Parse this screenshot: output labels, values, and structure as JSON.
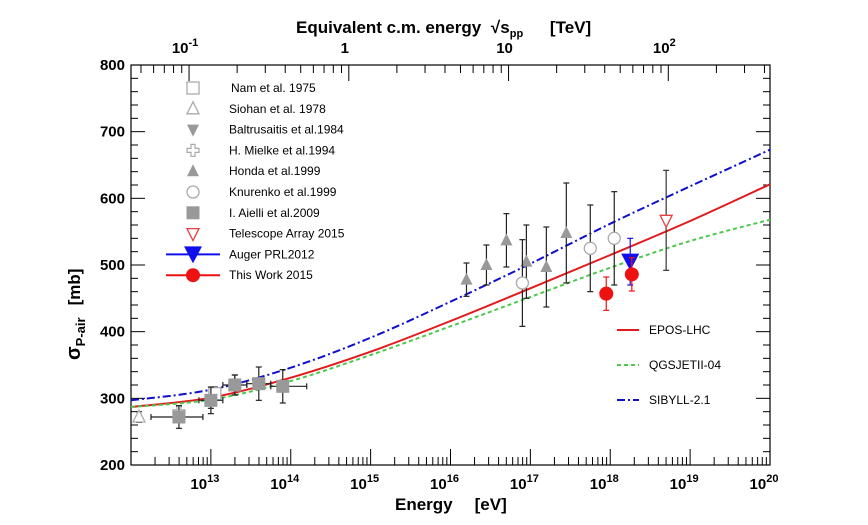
{
  "chart_data": {
    "type": "scatter",
    "ylabel": "σ",
    "ylabel_sub": "P-air",
    "ylabel_unit": "[mb]",
    "xlabel": "Energy",
    "xlabel_unit": "[eV]",
    "top_axis_title": "Equivalent c.m. energy",
    "top_axis_sqrt": "√",
    "top_axis_var": "s",
    "top_axis_sub": "pp",
    "top_axis_unit": "[TeV]",
    "xlim_log10": [
      12.0,
      20.0
    ],
    "ylim": [
      200,
      800
    ],
    "y_ticks": [
      200,
      300,
      400,
      500,
      600,
      700,
      800
    ],
    "x_ticks": [
      {
        "exp": 13,
        "base": "10",
        "sup": "13"
      },
      {
        "exp": 14,
        "base": "10",
        "sup": "14"
      },
      {
        "exp": 15,
        "base": "10",
        "sup": "15"
      },
      {
        "exp": 16,
        "base": "10",
        "sup": "16"
      },
      {
        "exp": 17,
        "base": "10",
        "sup": "17"
      },
      {
        "exp": 18,
        "base": "10",
        "sup": "18"
      },
      {
        "exp": 19,
        "base": "10",
        "sup": "19"
      },
      {
        "exp": 20,
        "base": "10",
        "sup": "20"
      }
    ],
    "top_ticks": [
      {
        "tev": 0.1,
        "base": "10",
        "sup": "-1"
      },
      {
        "tev": 1,
        "base": "1",
        "sup": ""
      },
      {
        "tev": 10,
        "base": "10",
        "sup": ""
      },
      {
        "tev": 100,
        "base": "10",
        "sup": "2"
      }
    ],
    "legend": [
      {
        "id": "nam",
        "label": "Nam et al. 1975",
        "marker": "open-square",
        "color": "#aaaaaa"
      },
      {
        "id": "siohan",
        "label": "Siohan et al. 1978",
        "marker": "open-triangle-up",
        "color": "#aaaaaa"
      },
      {
        "id": "baltrusaitis",
        "label": "Baltrusaitis et al.1984",
        "marker": "filled-triangle-down",
        "color": "#999999"
      },
      {
        "id": "mielke",
        "label": "H. Mielke et al.1994",
        "marker": "open-cross",
        "color": "#aaaaaa"
      },
      {
        "id": "honda",
        "label": "Honda et al.1999",
        "marker": "filled-triangle-up",
        "color": "#999999"
      },
      {
        "id": "knurenko",
        "label": "Knurenko et al.1999",
        "marker": "open-circle",
        "color": "#aaaaaa"
      },
      {
        "id": "aielli",
        "label": "I. Aielli et al.2009",
        "marker": "filled-square",
        "color": "#999999"
      },
      {
        "id": "ta",
        "label": "Telescope Array 2015",
        "marker": "open-triangle-down",
        "color": "#e04040"
      },
      {
        "id": "auger",
        "label": "Auger PRL2012",
        "marker": "filled-triangle-down-big",
        "color": "#1010ee"
      },
      {
        "id": "this",
        "label": "This Work 2015",
        "marker": "filled-circle-big",
        "color": "#ee1111"
      }
    ],
    "models": [
      {
        "name": "EPOS-LHC",
        "color": "#e31a1c",
        "dash": "",
        "logE": [
          12,
          13,
          14,
          15,
          16,
          17,
          18,
          19,
          20
        ],
        "values": [
          287,
          301,
          331,
          370,
          416,
          465,
          515,
          566,
          621
        ]
      },
      {
        "name": "QGSJETII-04",
        "color": "#4dc84d",
        "dash": "4,3",
        "logE": [
          12,
          13,
          14,
          15,
          16,
          17,
          18,
          19,
          20
        ],
        "values": [
          287,
          298,
          326,
          365,
          408,
          452,
          496,
          536,
          568
        ]
      },
      {
        "name": "SIBYLL-2.1",
        "color": "#1010cc",
        "dash": "8,3,2,3",
        "logE": [
          12,
          13,
          14,
          15,
          16,
          17,
          18,
          19,
          20
        ],
        "values": [
          297,
          313,
          346,
          391,
          445,
          502,
          562,
          618,
          673
        ]
      }
    ],
    "series": [
      {
        "id": "siohan",
        "points": [
          {
            "logE": 12.1,
            "y": 272,
            "yerr": 8
          }
        ]
      },
      {
        "id": "mielke",
        "points": [
          {
            "logE": 12.6,
            "y": 280,
            "yerr": 8
          },
          {
            "logE": 13.3,
            "y": 320,
            "yerr": 15
          }
        ]
      },
      {
        "id": "nam",
        "points": [
          {
            "logE": 13.05,
            "y": 307,
            "yerr": 10
          }
        ]
      },
      {
        "id": "baltrusaitis",
        "points": [
          {
            "logE": 13.0,
            "y": 295,
            "yerr": 10
          }
        ]
      },
      {
        "id": "aielli",
        "points": [
          {
            "logE": 12.6,
            "y": 272,
            "yerr": 17,
            "xlo": 12.25,
            "xhi": 12.9
          },
          {
            "logE": 13.0,
            "y": 297,
            "yerr": 20,
            "xlo": 12.85,
            "xhi": 13.15
          },
          {
            "logE": 13.3,
            "y": 320,
            "yerr": 15,
            "xlo": 13.15,
            "xhi": 13.45
          },
          {
            "logE": 13.6,
            "y": 322,
            "yerr": 25,
            "xlo": 13.45,
            "xhi": 13.75
          },
          {
            "logE": 13.9,
            "y": 318,
            "yerr": 25,
            "xlo": 13.75,
            "xhi": 14.2
          }
        ]
      },
      {
        "id": "honda",
        "points": [
          {
            "logE": 16.2,
            "y": 478,
            "yerr": 25
          },
          {
            "logE": 16.45,
            "y": 500,
            "yerr": 30
          },
          {
            "logE": 16.7,
            "y": 537,
            "yerr": 40
          },
          {
            "logE": 16.95,
            "y": 505,
            "yerr": 55
          },
          {
            "logE": 17.2,
            "y": 497,
            "yerr": 60
          },
          {
            "logE": 17.45,
            "y": 548,
            "yerr": 75
          }
        ]
      },
      {
        "id": "knurenko",
        "points": [
          {
            "logE": 16.9,
            "y": 473,
            "yerr": 65
          },
          {
            "logE": 17.75,
            "y": 525,
            "yerr": 65
          },
          {
            "logE": 18.05,
            "y": 540,
            "yerr": 70
          }
        ]
      },
      {
        "id": "ta",
        "points": [
          {
            "logE": 18.7,
            "y": 567,
            "yerr": 75
          }
        ]
      },
      {
        "id": "auger",
        "points": [
          {
            "logE": 18.25,
            "y": 505,
            "yerr": 35
          }
        ]
      },
      {
        "id": "this",
        "points": [
          {
            "logE": 17.95,
            "y": 457,
            "yerr": 25
          },
          {
            "logE": 18.27,
            "y": 486,
            "yerr": 25
          }
        ]
      }
    ]
  }
}
